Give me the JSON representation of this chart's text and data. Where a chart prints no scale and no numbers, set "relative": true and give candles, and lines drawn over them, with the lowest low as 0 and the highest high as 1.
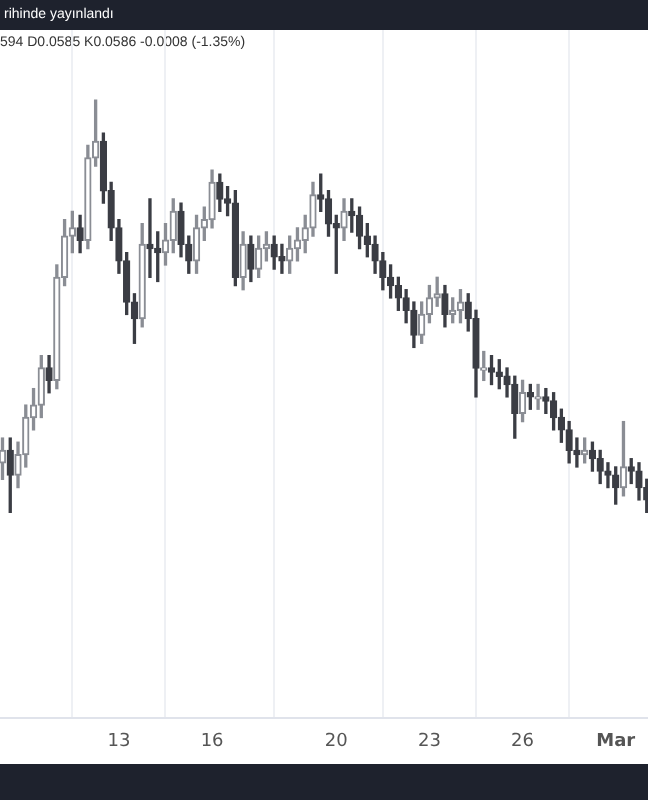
{
  "chart_data": {
    "type": "candlestick",
    "relative": true,
    "grid": "x",
    "annotations": [
      "rihinde yayınlandı",
      "594 D0.0585 K0.0586 -0.0008 (-1.35%)"
    ],
    "xlim": [
      9.17,
      30.04
    ],
    "xticks": [
      13,
      16,
      20,
      23,
      26,
      {
        "value": 29,
        "label": "Mar"
      }
    ],
    "x": [
      9.25,
      9.5,
      9.75,
      10,
      10.25,
      10.5,
      10.75,
      11,
      11.25,
      11.5,
      11.75,
      12,
      12.25,
      12.5,
      12.75,
      13,
      13.25,
      13.5,
      13.75,
      14,
      14.25,
      14.5,
      14.75,
      15,
      15.25,
      15.5,
      15.75,
      16,
      16.25,
      16.5,
      16.75,
      17,
      17.25,
      17.5,
      17.75,
      18,
      18.25,
      18.5,
      18.75,
      19,
      19.25,
      19.5,
      19.75,
      20,
      20.25,
      20.5,
      20.75,
      21,
      21.25,
      21.5,
      21.75,
      22,
      22.25,
      22.5,
      22.75,
      23,
      23.25,
      23.5,
      23.75,
      24,
      24.25,
      24.5,
      24.75,
      25,
      25.25,
      25.5,
      25.75,
      26,
      26.25,
      26.5,
      26.75,
      27,
      27.25,
      27.5,
      27.75,
      28,
      28.25,
      28.5,
      28.75,
      29,
      29.25,
      29.5,
      29.75,
      30
    ],
    "ohlc": [
      [
        0.12,
        0.18,
        0.08,
        0.15
      ],
      [
        0.15,
        0.18,
        0,
        0.09
      ],
      [
        0.09,
        0.17,
        0.06,
        0.14
      ],
      [
        0.14,
        0.26,
        0.11,
        0.23
      ],
      [
        0.23,
        0.3,
        0.2,
        0.26
      ],
      [
        0.26,
        0.38,
        0.23,
        0.35
      ],
      [
        0.35,
        0.38,
        0.29,
        0.32
      ],
      [
        0.32,
        0.6,
        0.3,
        0.57
      ],
      [
        0.57,
        0.71,
        0.55,
        0.67
      ],
      [
        0.67,
        0.73,
        0.63,
        0.69
      ],
      [
        0.69,
        0.72,
        0.63,
        0.66
      ],
      [
        0.66,
        0.89,
        0.64,
        0.86
      ],
      [
        0.86,
        1,
        0.84,
        0.9
      ],
      [
        0.9,
        0.92,
        0.75,
        0.78
      ],
      [
        0.78,
        0.8,
        0.66,
        0.69
      ],
      [
        0.69,
        0.71,
        0.58,
        0.61
      ],
      [
        0.61,
        0.63,
        0.48,
        0.51
      ],
      [
        0.51,
        0.53,
        0.41,
        0.47
      ],
      [
        0.47,
        0.7,
        0.45,
        0.65
      ],
      [
        0.65,
        0.76,
        0.57,
        0.64
      ],
      [
        0.64,
        0.68,
        0.56,
        0.63
      ],
      [
        0.63,
        0.7,
        0.6,
        0.66
      ],
      [
        0.66,
        0.76,
        0.63,
        0.73
      ],
      [
        0.73,
        0.75,
        0.62,
        0.65
      ],
      [
        0.65,
        0.67,
        0.58,
        0.61
      ],
      [
        0.61,
        0.72,
        0.58,
        0.69
      ],
      [
        0.69,
        0.74,
        0.66,
        0.71
      ],
      [
        0.71,
        0.83,
        0.69,
        0.8
      ],
      [
        0.8,
        0.82,
        0.73,
        0.76
      ],
      [
        0.76,
        0.79,
        0.72,
        0.75
      ],
      [
        0.75,
        0.78,
        0.55,
        0.57
      ],
      [
        0.57,
        0.68,
        0.54,
        0.65
      ],
      [
        0.65,
        0.67,
        0.56,
        0.59
      ],
      [
        0.59,
        0.67,
        0.57,
        0.64
      ],
      [
        0.64,
        0.68,
        0.61,
        0.65
      ],
      [
        0.65,
        0.67,
        0.59,
        0.62
      ],
      [
        0.62,
        0.65,
        0.58,
        0.61
      ],
      [
        0.61,
        0.67,
        0.58,
        0.64
      ],
      [
        0.64,
        0.69,
        0.61,
        0.66
      ],
      [
        0.66,
        0.72,
        0.63,
        0.69
      ],
      [
        0.69,
        0.8,
        0.67,
        0.77
      ],
      [
        0.77,
        0.82,
        0.73,
        0.76
      ],
      [
        0.76,
        0.78,
        0.67,
        0.7
      ],
      [
        0.7,
        0.72,
        0.58,
        0.69
      ],
      [
        0.69,
        0.76,
        0.66,
        0.73
      ],
      [
        0.73,
        0.76,
        0.68,
        0.72
      ],
      [
        0.72,
        0.74,
        0.64,
        0.67
      ],
      [
        0.67,
        0.7,
        0.62,
        0.65
      ],
      [
        0.65,
        0.67,
        0.58,
        0.61
      ],
      [
        0.61,
        0.63,
        0.54,
        0.57
      ],
      [
        0.57,
        0.6,
        0.52,
        0.55
      ],
      [
        0.55,
        0.57,
        0.49,
        0.52
      ],
      [
        0.52,
        0.54,
        0.46,
        0.49
      ],
      [
        0.49,
        0.51,
        0.4,
        0.43
      ],
      [
        0.43,
        0.51,
        0.41,
        0.48
      ],
      [
        0.48,
        0.55,
        0.46,
        0.52
      ],
      [
        0.52,
        0.57,
        0.5,
        0.53
      ],
      [
        0.53,
        0.55,
        0.45,
        0.48
      ],
      [
        0.48,
        0.52,
        0.46,
        0.49
      ],
      [
        0.49,
        0.54,
        0.46,
        0.51
      ],
      [
        0.51,
        0.53,
        0.44,
        0.47
      ],
      [
        0.47,
        0.49,
        0.28,
        0.35
      ],
      [
        0.35,
        0.39,
        0.32,
        0.35
      ],
      [
        0.35,
        0.38,
        0.31,
        0.34
      ],
      [
        0.34,
        0.37,
        0.3,
        0.33
      ],
      [
        0.33,
        0.35,
        0.28,
        0.31
      ],
      [
        0.31,
        0.33,
        0.18,
        0.24
      ],
      [
        0.24,
        0.32,
        0.22,
        0.29
      ],
      [
        0.29,
        0.31,
        0.25,
        0.28
      ],
      [
        0.28,
        0.31,
        0.25,
        0.28
      ],
      [
        0.28,
        0.3,
        0.24,
        0.27
      ],
      [
        0.27,
        0.29,
        0.2,
        0.23
      ],
      [
        0.23,
        0.25,
        0.17,
        0.2
      ],
      [
        0.2,
        0.22,
        0.12,
        0.15
      ],
      [
        0.15,
        0.18,
        0.11,
        0.14
      ],
      [
        0.14,
        0.18,
        0.12,
        0.15
      ],
      [
        0.15,
        0.17,
        0.1,
        0.13
      ],
      [
        0.13,
        0.15,
        0.07,
        0.1
      ],
      [
        0.1,
        0.12,
        0.06,
        0.09
      ],
      [
        0.09,
        0.11,
        0.02,
        0.06
      ],
      [
        0.06,
        0.22,
        0.04,
        0.11
      ],
      [
        0.11,
        0.13,
        0.07,
        0.1
      ],
      [
        0.1,
        0.12,
        0.03,
        0.06
      ],
      [
        0.06,
        0.08,
        0,
        0.03
      ]
    ]
  }
}
